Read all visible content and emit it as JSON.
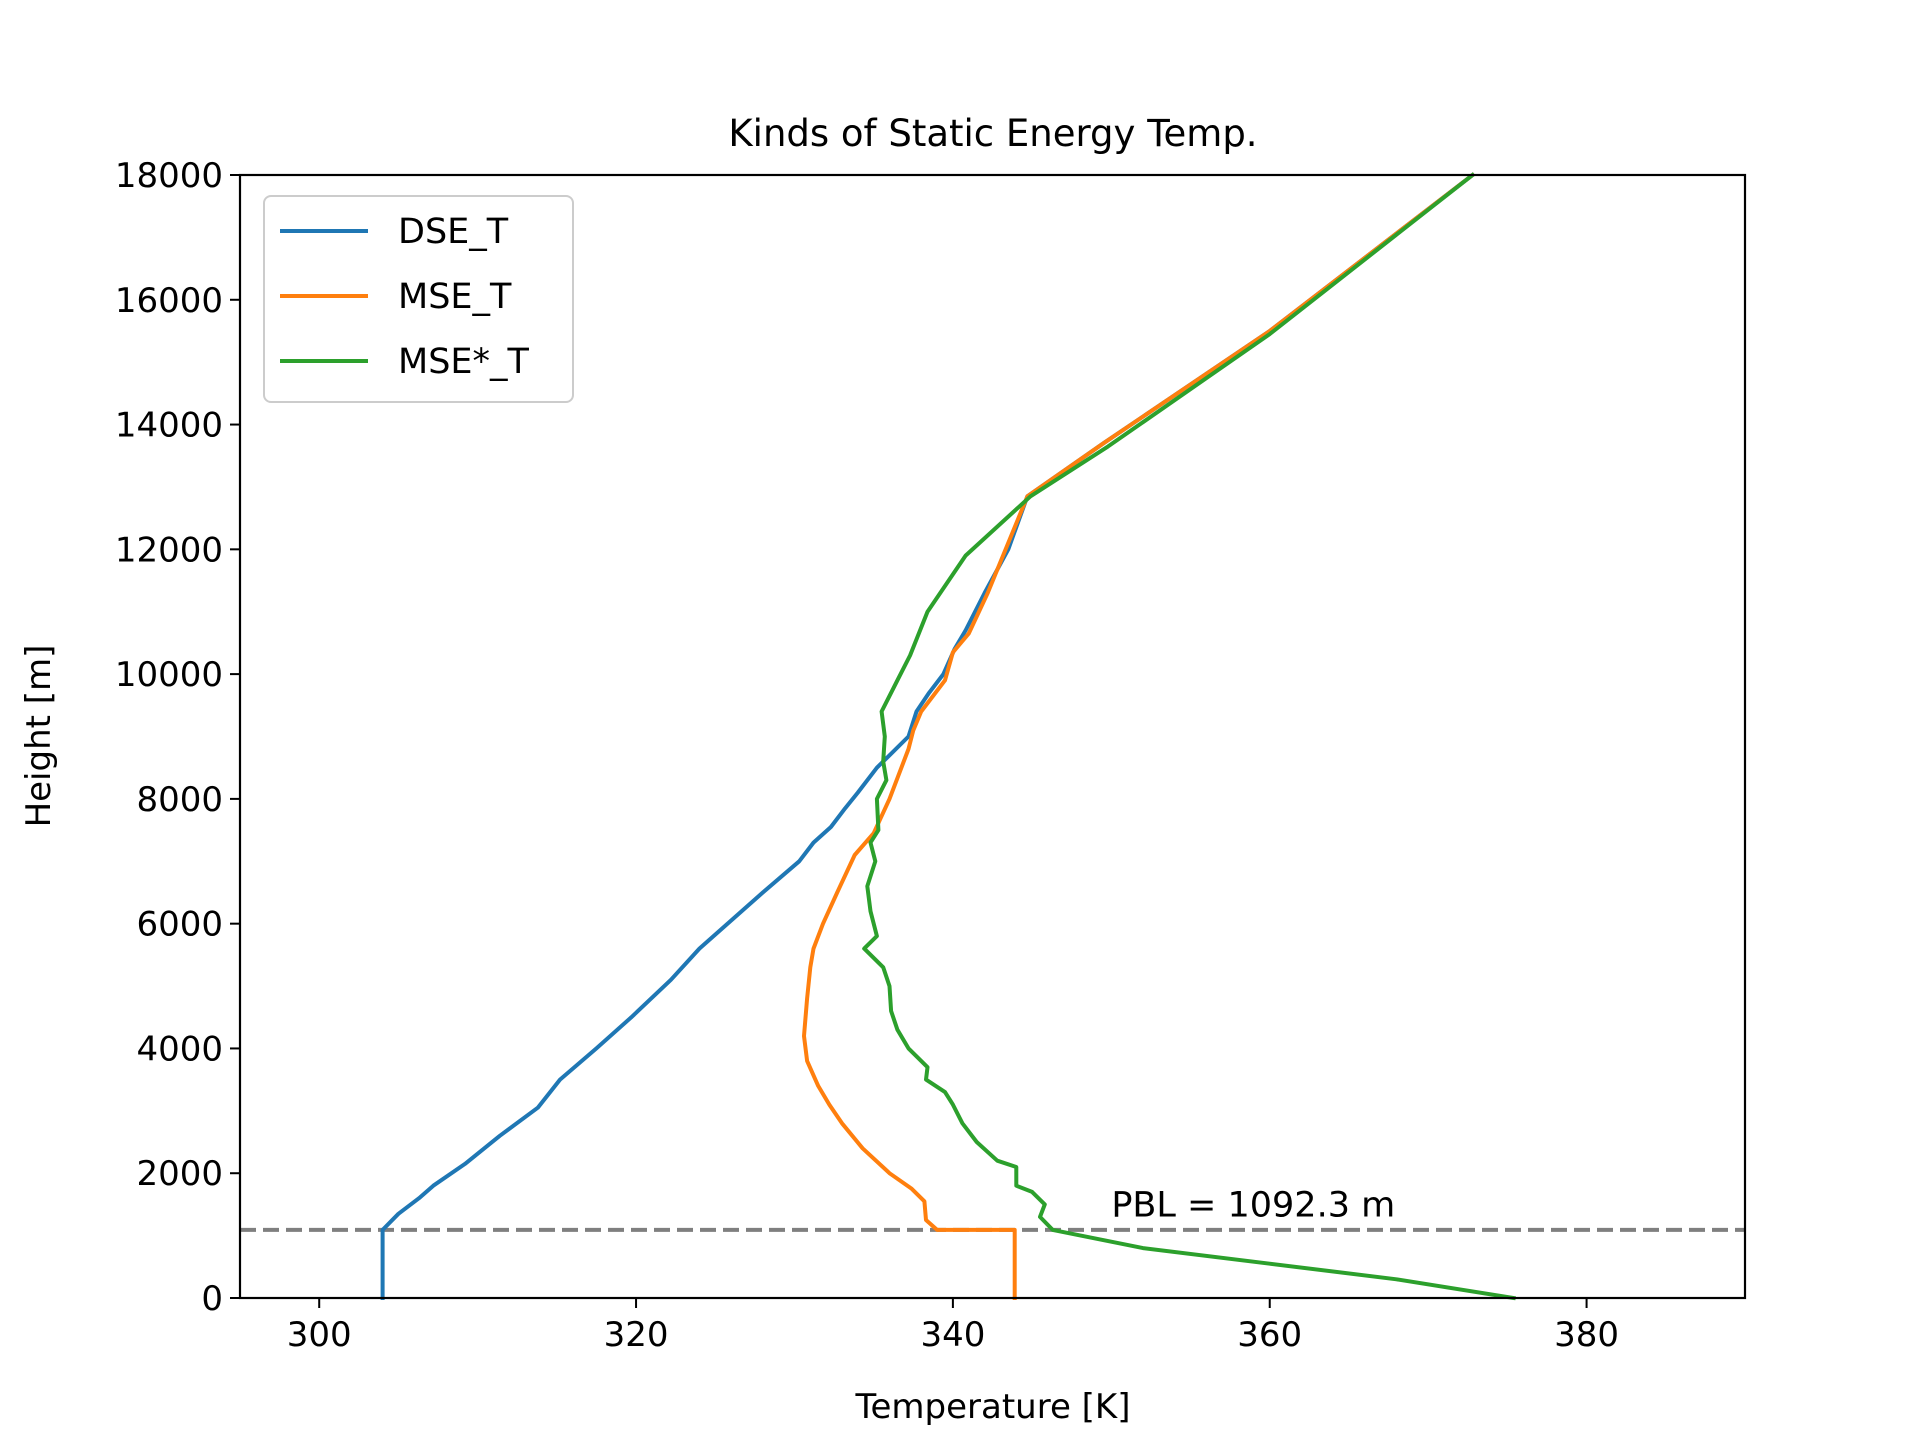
{
  "chart_data": {
    "type": "line",
    "title": "Kinds of Static Energy Temp.",
    "xlabel": "Temperature [K]",
    "ylabel": "Height [m]",
    "xlim": [
      295,
      390
    ],
    "ylim": [
      0,
      18000
    ],
    "xticks": [
      300,
      320,
      340,
      360,
      380
    ],
    "yticks": [
      0,
      2000,
      4000,
      6000,
      8000,
      10000,
      12000,
      14000,
      16000,
      18000
    ],
    "grid": false,
    "legend_position": "upper-left",
    "annotation": {
      "text": "PBL = 1092.3 m",
      "x": 350,
      "y": 1100
    },
    "reference_lines": [
      {
        "orientation": "horizontal",
        "y": 1092.3,
        "style": "dashed",
        "color": "#7f7f7f"
      }
    ],
    "series": [
      {
        "name": "DSE_T",
        "color": "#1f77b4",
        "points": [
          [
            304.0,
            0
          ],
          [
            304.0,
            1092
          ],
          [
            305.0,
            1350
          ],
          [
            306.3,
            1600
          ],
          [
            307.2,
            1800
          ],
          [
            309.2,
            2150
          ],
          [
            311.4,
            2600
          ],
          [
            313.8,
            3050
          ],
          [
            315.2,
            3500
          ],
          [
            317.5,
            4000
          ],
          [
            319.7,
            4500
          ],
          [
            322.2,
            5100
          ],
          [
            324.0,
            5600
          ],
          [
            328.0,
            6500
          ],
          [
            330.3,
            7000
          ],
          [
            331.2,
            7300
          ],
          [
            332.3,
            7550
          ],
          [
            333.2,
            7850
          ],
          [
            334.0,
            8100
          ],
          [
            335.2,
            8500
          ],
          [
            337.2,
            9000
          ],
          [
            337.7,
            9400
          ],
          [
            338.5,
            9700
          ],
          [
            339.4,
            10000
          ],
          [
            340.1,
            10400
          ],
          [
            340.8,
            10700
          ],
          [
            342.0,
            11300
          ],
          [
            343.5,
            12000
          ],
          [
            344.7,
            12850
          ],
          [
            349.5,
            13700
          ],
          [
            360.0,
            15500
          ],
          [
            372.8,
            18000
          ]
        ]
      },
      {
        "name": "MSE_T",
        "color": "#ff7f0e",
        "points": [
          [
            343.9,
            0
          ],
          [
            343.9,
            1092
          ],
          [
            339.0,
            1092
          ],
          [
            338.3,
            1250
          ],
          [
            338.2,
            1550
          ],
          [
            337.4,
            1750
          ],
          [
            336.0,
            2000
          ],
          [
            334.3,
            2400
          ],
          [
            333.0,
            2800
          ],
          [
            332.2,
            3100
          ],
          [
            331.5,
            3400
          ],
          [
            330.8,
            3800
          ],
          [
            330.6,
            4200
          ],
          [
            330.8,
            4800
          ],
          [
            331.0,
            5300
          ],
          [
            331.2,
            5600
          ],
          [
            331.8,
            6000
          ],
          [
            332.7,
            6500
          ],
          [
            333.8,
            7100
          ],
          [
            335.0,
            7450
          ],
          [
            336.0,
            8000
          ],
          [
            337.2,
            8800
          ],
          [
            337.5,
            9100
          ],
          [
            338.0,
            9400
          ],
          [
            339.5,
            9900
          ],
          [
            340.0,
            10350
          ],
          [
            341.0,
            10650
          ],
          [
            342.2,
            11300
          ],
          [
            344.7,
            12850
          ],
          [
            349.5,
            13700
          ],
          [
            360.0,
            15500
          ],
          [
            372.8,
            18000
          ]
        ]
      },
      {
        "name": "MSE*_T",
        "color": "#2ca02c",
        "points": [
          [
            375.4,
            0
          ],
          [
            368.0,
            300
          ],
          [
            360.0,
            550
          ],
          [
            352.0,
            800
          ],
          [
            346.3,
            1092
          ],
          [
            345.5,
            1300
          ],
          [
            345.8,
            1500
          ],
          [
            345.0,
            1700
          ],
          [
            344.0,
            1800
          ],
          [
            344.0,
            2100
          ],
          [
            342.8,
            2200
          ],
          [
            341.5,
            2500
          ],
          [
            340.6,
            2800
          ],
          [
            340.0,
            3100
          ],
          [
            339.5,
            3300
          ],
          [
            338.3,
            3500
          ],
          [
            338.4,
            3700
          ],
          [
            337.2,
            4000
          ],
          [
            336.5,
            4300
          ],
          [
            336.1,
            4600
          ],
          [
            336.0,
            5000
          ],
          [
            335.6,
            5300
          ],
          [
            334.4,
            5600
          ],
          [
            335.2,
            5800
          ],
          [
            334.8,
            6200
          ],
          [
            334.6,
            6600
          ],
          [
            335.1,
            7000
          ],
          [
            334.8,
            7300
          ],
          [
            335.3,
            7500
          ],
          [
            335.2,
            8000
          ],
          [
            335.8,
            8300
          ],
          [
            335.6,
            8600
          ],
          [
            335.7,
            9000
          ],
          [
            335.5,
            9400
          ],
          [
            336.5,
            9900
          ],
          [
            337.3,
            10300
          ],
          [
            338.4,
            11000
          ],
          [
            340.8,
            11900
          ],
          [
            344.9,
            12850
          ],
          [
            349.8,
            13650
          ],
          [
            360.0,
            15450
          ],
          [
            372.8,
            18000
          ]
        ]
      }
    ]
  }
}
